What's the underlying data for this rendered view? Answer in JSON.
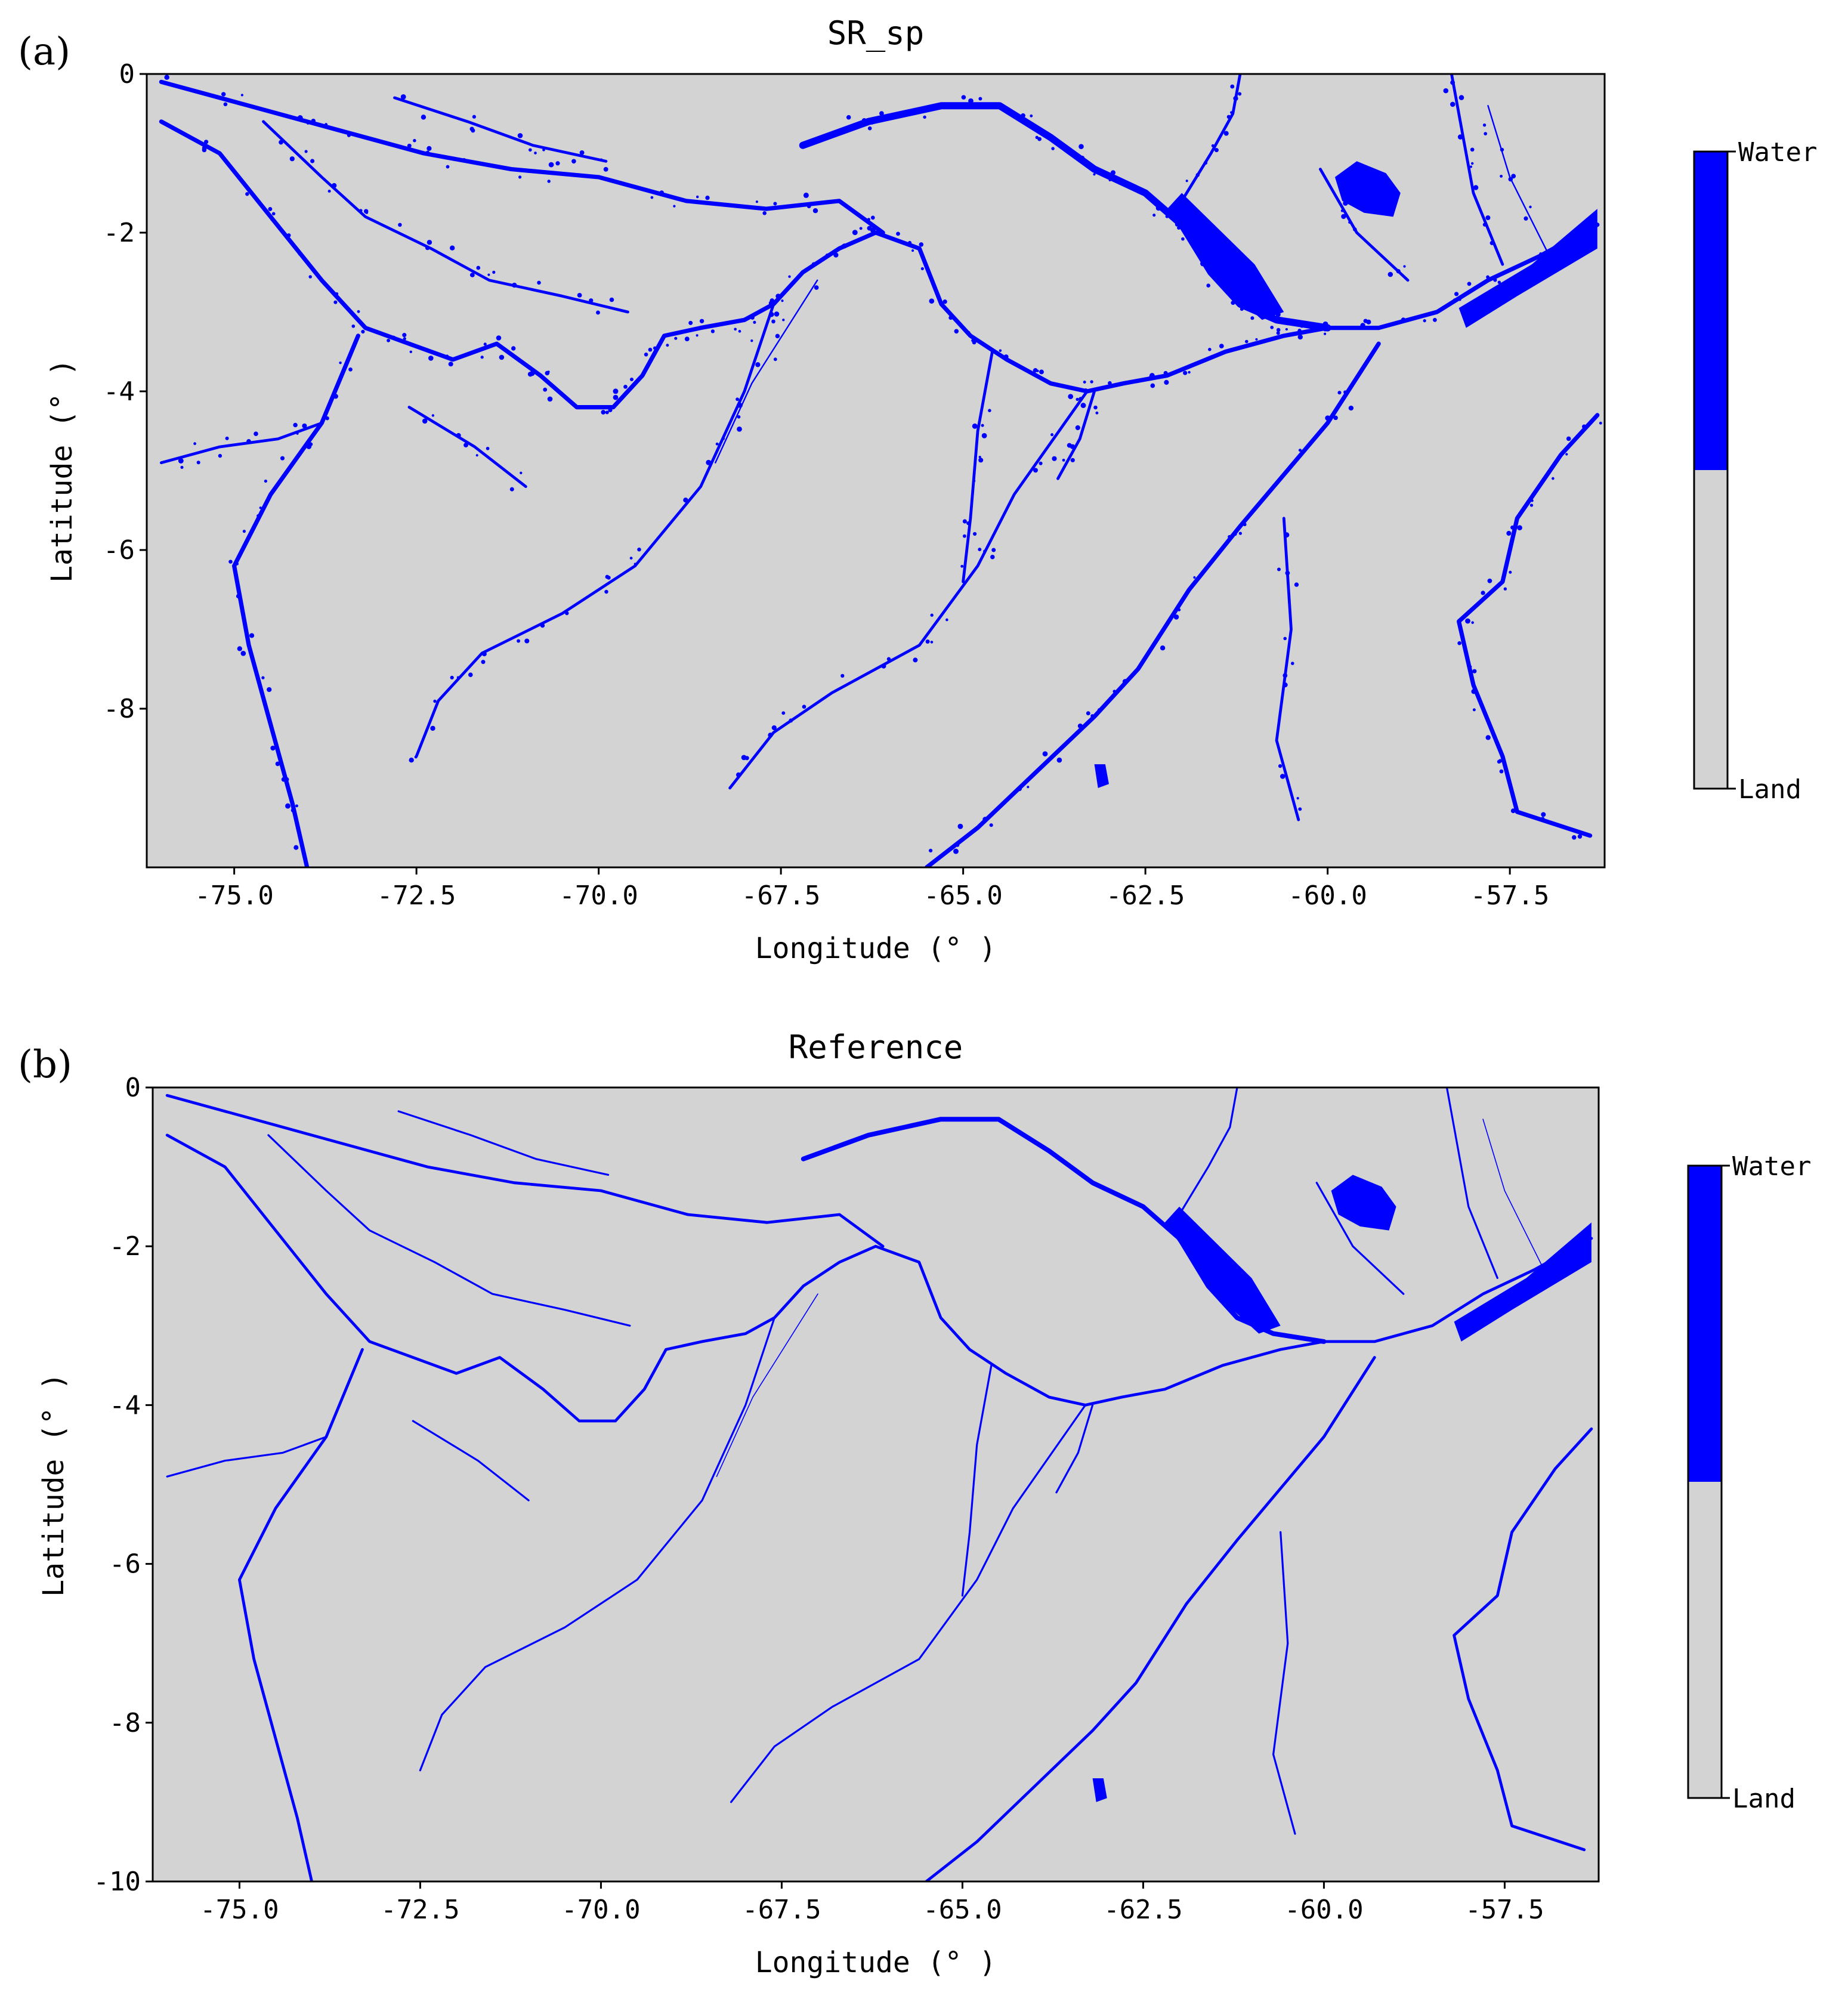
{
  "colors": {
    "water": "#0000ff",
    "land": "#d3d3d3",
    "frame": "#000000",
    "page": "#ffffff"
  },
  "colorbar": {
    "top_label": "Water",
    "bottom_label": "Land"
  },
  "panels": [
    {
      "letter": "(a)",
      "title": "SR_sp",
      "xlabel": "Longitude (° )",
      "ylabel": "Latitude (° )",
      "xlim": [
        -76.2,
        -56.2
      ],
      "ylim": [
        -10,
        0
      ],
      "xticks": [
        -75.0,
        -72.5,
        -70.0,
        -67.5,
        -65.0,
        -62.5,
        -60.0,
        -57.5
      ],
      "xtick_labels": [
        "-75.0",
        "-72.5",
        "-70.0",
        "-67.5",
        "-65.0",
        "-62.5",
        "-60.0",
        "-57.5"
      ],
      "yticks": [
        0,
        -2,
        -4,
        -6,
        -8
      ],
      "ytick_labels": [
        "0",
        "-2",
        "-4",
        "-6",
        "-8"
      ],
      "noisy": true
    },
    {
      "letter": "(b)",
      "title": "Reference",
      "xlabel": "Longitude (° )",
      "ylabel": "Latitude (° )",
      "xlim": [
        -76.2,
        -56.2
      ],
      "ylim": [
        -10,
        0
      ],
      "xticks": [
        -75.0,
        -72.5,
        -70.0,
        -67.5,
        -65.0,
        -62.5,
        -60.0,
        -57.5
      ],
      "xtick_labels": [
        "-75.0",
        "-72.5",
        "-70.0",
        "-67.5",
        "-65.0",
        "-62.5",
        "-60.0",
        "-57.5"
      ],
      "yticks": [
        0,
        -2,
        -4,
        -6,
        -8,
        -10
      ],
      "ytick_labels": [
        "0",
        "-2",
        "-4",
        "-6",
        "-8",
        "-10"
      ],
      "noisy": false
    }
  ],
  "rivers": [
    {
      "name": "main-river",
      "width": 3,
      "points": [
        [
          -76.0,
          -0.6
        ],
        [
          -75.2,
          -1.0
        ],
        [
          -74.5,
          -1.8
        ],
        [
          -73.8,
          -2.6
        ],
        [
          -73.2,
          -3.2
        ],
        [
          -72.6,
          -3.4
        ],
        [
          -72.0,
          -3.6
        ],
        [
          -71.4,
          -3.4
        ],
        [
          -70.8,
          -3.8
        ],
        [
          -70.3,
          -4.2
        ],
        [
          -69.8,
          -4.2
        ],
        [
          -69.4,
          -3.8
        ],
        [
          -69.1,
          -3.3
        ],
        [
          -68.6,
          -3.2
        ],
        [
          -68.0,
          -3.1
        ],
        [
          -67.6,
          -2.9
        ],
        [
          -67.2,
          -2.5
        ],
        [
          -66.7,
          -2.2
        ],
        [
          -66.2,
          -2.0
        ],
        [
          -65.6,
          -2.2
        ],
        [
          -65.3,
          -2.9
        ],
        [
          -64.9,
          -3.3
        ],
        [
          -64.4,
          -3.6
        ],
        [
          -63.8,
          -3.9
        ],
        [
          -63.3,
          -4.0
        ],
        [
          -62.8,
          -3.9
        ],
        [
          -62.2,
          -3.8
        ],
        [
          -61.4,
          -3.5
        ],
        [
          -60.6,
          -3.3
        ],
        [
          -60.0,
          -3.2
        ],
        [
          -59.3,
          -3.2
        ],
        [
          -58.5,
          -3.0
        ],
        [
          -57.8,
          -2.6
        ],
        [
          -57.1,
          -2.3
        ],
        [
          -56.3,
          -1.9
        ]
      ]
    },
    {
      "name": "northern-river",
      "width": 3,
      "points": [
        [
          -76.0,
          -0.1
        ],
        [
          -74.8,
          -0.4
        ],
        [
          -73.6,
          -0.7
        ],
        [
          -72.4,
          -1.0
        ],
        [
          -71.2,
          -1.2
        ],
        [
          -70.0,
          -1.3
        ],
        [
          -68.8,
          -1.6
        ],
        [
          -67.7,
          -1.7
        ],
        [
          -66.7,
          -1.6
        ],
        [
          -66.1,
          -2.0
        ]
      ]
    },
    {
      "name": "rio-negro",
      "width": 5,
      "points": [
        [
          -67.2,
          -0.9
        ],
        [
          -66.3,
          -0.6
        ],
        [
          -65.3,
          -0.4
        ],
        [
          -64.5,
          -0.4
        ],
        [
          -63.8,
          -0.8
        ],
        [
          -63.2,
          -1.2
        ],
        [
          -62.5,
          -1.5
        ],
        [
          -62.0,
          -1.9
        ],
        [
          -61.6,
          -2.5
        ],
        [
          -61.2,
          -2.9
        ],
        [
          -60.7,
          -3.1
        ],
        [
          -60.0,
          -3.2
        ]
      ]
    },
    {
      "name": "branco-river",
      "width": 2,
      "points": [
        [
          -61.2,
          0.0
        ],
        [
          -61.3,
          -0.5
        ],
        [
          -61.6,
          -1.0
        ],
        [
          -62.0,
          -1.6
        ]
      ]
    },
    {
      "name": "ucayali-river",
      "width": 3,
      "points": [
        [
          -73.3,
          -3.3
        ],
        [
          -73.8,
          -4.4
        ],
        [
          -74.5,
          -5.3
        ],
        [
          -75.0,
          -6.2
        ],
        [
          -74.8,
          -7.2
        ],
        [
          -74.5,
          -8.2
        ],
        [
          -74.2,
          -9.2
        ],
        [
          -74.0,
          -10.0
        ]
      ]
    },
    {
      "name": "maranon-river",
      "width": 2,
      "points": [
        [
          -76.0,
          -4.9
        ],
        [
          -75.2,
          -4.7
        ],
        [
          -74.4,
          -4.6
        ],
        [
          -73.8,
          -4.4
        ]
      ]
    },
    {
      "name": "jurua-river",
      "width": 2,
      "points": [
        [
          -67.6,
          -2.9
        ],
        [
          -68.0,
          -4.0
        ],
        [
          -68.6,
          -5.2
        ],
        [
          -69.5,
          -6.2
        ],
        [
          -70.5,
          -6.8
        ],
        [
          -71.6,
          -7.3
        ],
        [
          -72.2,
          -7.9
        ],
        [
          -72.5,
          -8.6
        ]
      ]
    },
    {
      "name": "purus-river",
      "width": 2,
      "points": [
        [
          -63.3,
          -4.0
        ],
        [
          -64.3,
          -5.3
        ],
        [
          -64.8,
          -6.2
        ],
        [
          -65.6,
          -7.2
        ],
        [
          -66.8,
          -7.8
        ],
        [
          -67.6,
          -8.3
        ],
        [
          -68.2,
          -9.0
        ]
      ]
    },
    {
      "name": "madeira-river",
      "width": 3,
      "points": [
        [
          -59.3,
          -3.4
        ],
        [
          -60.0,
          -4.4
        ],
        [
          -61.2,
          -5.7
        ],
        [
          -61.9,
          -6.5
        ],
        [
          -62.6,
          -7.5
        ],
        [
          -63.2,
          -8.1
        ],
        [
          -64.0,
          -8.8
        ],
        [
          -64.8,
          -9.5
        ],
        [
          -65.5,
          -10.0
        ]
      ]
    },
    {
      "name": "tapajos-river",
      "width": 3,
      "points": [
        [
          -56.3,
          -4.3
        ],
        [
          -56.8,
          -4.8
        ],
        [
          -57.4,
          -5.6
        ],
        [
          -57.6,
          -6.4
        ],
        [
          -58.2,
          -6.9
        ],
        [
          -58.0,
          -7.7
        ],
        [
          -57.6,
          -8.6
        ],
        [
          -57.4,
          -9.3
        ],
        [
          -56.4,
          -9.6
        ]
      ]
    },
    {
      "name": "tefe-river",
      "width": 2,
      "points": [
        [
          -64.6,
          -3.5
        ],
        [
          -64.8,
          -4.5
        ],
        [
          -64.9,
          -5.6
        ],
        [
          -65.0,
          -6.4
        ]
      ]
    },
    {
      "name": "coari-river",
      "width": 2,
      "points": [
        [
          -63.2,
          -4.0
        ],
        [
          -63.4,
          -4.6
        ],
        [
          -63.7,
          -5.1
        ]
      ]
    },
    {
      "name": "putumayo-river",
      "width": 2,
      "points": [
        [
          -74.6,
          -0.6
        ],
        [
          -73.8,
          -1.3
        ],
        [
          -73.2,
          -1.8
        ],
        [
          -72.3,
          -2.2
        ],
        [
          -71.5,
          -2.6
        ],
        [
          -70.5,
          -2.8
        ],
        [
          -69.6,
          -3.0
        ]
      ]
    },
    {
      "name": "japura-river",
      "width": 2,
      "points": [
        [
          -72.8,
          -0.3
        ],
        [
          -71.8,
          -0.6
        ],
        [
          -70.9,
          -0.9
        ],
        [
          -69.9,
          -1.1
        ]
      ]
    },
    {
      "name": "javari-river",
      "width": 2,
      "points": [
        [
          -72.6,
          -4.2
        ],
        [
          -71.7,
          -4.7
        ],
        [
          -71.0,
          -5.2
        ]
      ]
    },
    {
      "name": "aripuana-river",
      "width": 2,
      "points": [
        [
          -60.6,
          -5.6
        ],
        [
          -60.5,
          -7.0
        ],
        [
          -60.7,
          -8.4
        ],
        [
          -60.4,
          -9.4
        ]
      ]
    },
    {
      "name": "trombetas-river",
      "width": 2,
      "points": [
        [
          -57.6,
          -2.4
        ],
        [
          -58.0,
          -1.5
        ],
        [
          -58.2,
          -0.5
        ],
        [
          -58.3,
          0.0
        ]
      ]
    },
    {
      "name": "uatuma-river",
      "width": 2,
      "points": [
        [
          -58.9,
          -2.6
        ],
        [
          -59.6,
          -2.0
        ],
        [
          -60.1,
          -1.2
        ]
      ]
    },
    {
      "name": "jutai-river",
      "width": 1,
      "points": [
        [
          -67.0,
          -2.6
        ],
        [
          -67.9,
          -3.9
        ],
        [
          -68.4,
          -4.9
        ]
      ]
    },
    {
      "name": "east-tributary",
      "width": 1,
      "points": [
        [
          -56.9,
          -2.4
        ],
        [
          -57.5,
          -1.3
        ],
        [
          -57.8,
          -0.4
        ]
      ]
    }
  ],
  "lakes": [
    {
      "name": "balbina-lake",
      "points": [
        [
          -59.9,
          -1.3
        ],
        [
          -59.6,
          -1.1
        ],
        [
          -59.2,
          -1.25
        ],
        [
          -59.0,
          -1.5
        ],
        [
          -59.1,
          -1.8
        ],
        [
          -59.5,
          -1.75
        ],
        [
          -59.8,
          -1.6
        ]
      ]
    },
    {
      "name": "anavilhanas-islands",
      "points": [
        [
          -62.0,
          -1.5
        ],
        [
          -61.0,
          -2.4
        ],
        [
          -60.6,
          -3.0
        ],
        [
          -60.9,
          -3.1
        ],
        [
          -61.5,
          -2.6
        ],
        [
          -62.2,
          -1.7
        ]
      ]
    },
    {
      "name": "lower-estuary",
      "points": [
        [
          -58.2,
          -2.95
        ],
        [
          -57.2,
          -2.4
        ],
        [
          -56.3,
          -1.7
        ],
        [
          -56.3,
          -2.2
        ],
        [
          -57.4,
          -2.8
        ],
        [
          -58.1,
          -3.2
        ]
      ]
    },
    {
      "name": "small-lake",
      "points": [
        [
          -63.2,
          -8.7
        ],
        [
          -63.05,
          -8.7
        ],
        [
          -63.0,
          -8.95
        ],
        [
          -63.15,
          -9.0
        ]
      ]
    }
  ]
}
